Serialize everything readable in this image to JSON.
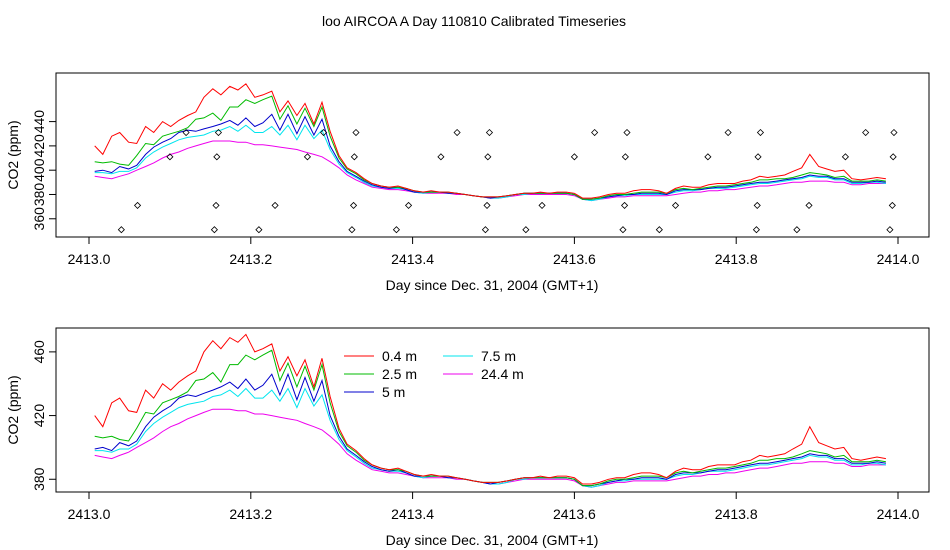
{
  "figure": {
    "title": "loo AIRCOA A  Day 110810  Calibrated Timeseries"
  },
  "colors": {
    "0.4 m": "#ff0000",
    "2.5 m": "#00bb00",
    "5 m": "#0000cc",
    "7.5 m": "#00e5ee",
    "24.4 m": "#ee00ee",
    "frame": "#000000"
  },
  "chart_data": [
    {
      "type": "line",
      "panel": "top",
      "xlabel": "Day since Dec. 31, 2004 (GMT+1)",
      "ylabel": "CO2 (ppm)",
      "xlim": [
        2413.0,
        2414.0
      ],
      "ylim": [
        345,
        480
      ],
      "xticks": [
        "2413.0",
        "2413.2",
        "2413.4",
        "2413.6",
        "2413.8",
        "2414.0"
      ],
      "yticks": [
        "360",
        "380",
        "400",
        "420",
        "440"
      ],
      "legend": "none",
      "x": [
        2413.007,
        2413.017,
        2413.028,
        2413.038,
        2413.049,
        2413.059,
        2413.07,
        2413.08,
        2413.091,
        2413.101,
        2413.111,
        2413.122,
        2413.132,
        2413.142,
        2413.153,
        2413.163,
        2413.174,
        2413.184,
        2413.194,
        2413.205,
        2413.215,
        2413.226,
        2413.236,
        2413.246,
        2413.257,
        2413.267,
        2413.278,
        2413.288,
        2413.298,
        2413.309,
        2413.319,
        2413.33,
        2413.34,
        2413.35,
        2413.361,
        2413.371,
        2413.382,
        2413.392,
        2413.402,
        2413.413,
        2413.423,
        2413.434,
        2413.444,
        2413.454,
        2413.465,
        2413.475,
        2413.486,
        2413.496,
        2413.506,
        2413.517,
        2413.527,
        2413.538,
        2413.548,
        2413.558,
        2413.569,
        2413.579,
        2413.59,
        2413.6,
        2413.61,
        2413.621,
        2413.631,
        2413.642,
        2413.652,
        2413.662,
        2413.673,
        2413.683,
        2413.694,
        2413.704,
        2413.714,
        2413.725,
        2413.735,
        2413.746,
        2413.756,
        2413.766,
        2413.777,
        2413.787,
        2413.798,
        2413.808,
        2413.818,
        2413.829,
        2413.839,
        2413.85,
        2413.86,
        2413.87,
        2413.881,
        2413.891,
        2413.902,
        2413.912,
        2413.922,
        2413.933,
        2413.943,
        2413.954,
        2413.964,
        2413.974,
        2413.985
      ],
      "series": [
        {
          "name": "0.4 m",
          "values": [
            420,
            413,
            428,
            431,
            423,
            422,
            436,
            431,
            440,
            436,
            441,
            445,
            448,
            460,
            467,
            462,
            469,
            466,
            471,
            460,
            462,
            465,
            448,
            457,
            445,
            455,
            438,
            456,
            432,
            412,
            402,
            398,
            393,
            389,
            387,
            386,
            387,
            385,
            383,
            382,
            383,
            382,
            382,
            381,
            380,
            379,
            378,
            378,
            378,
            379,
            380,
            381,
            381,
            382,
            381,
            382,
            382,
            381,
            377,
            377,
            378,
            380,
            381,
            381,
            383,
            384,
            384,
            383,
            381,
            385,
            387,
            386,
            386,
            388,
            389,
            389,
            389,
            391,
            392,
            395,
            394,
            395,
            396,
            399,
            402,
            413,
            403,
            401,
            399,
            400,
            393,
            392,
            393,
            394,
            393
          ]
        },
        {
          "name": "2.5 m",
          "values": [
            407,
            406,
            407,
            405,
            404,
            412,
            422,
            421,
            428,
            430,
            432,
            435,
            442,
            443,
            447,
            441,
            452,
            452,
            458,
            455,
            458,
            461,
            442,
            453,
            438,
            451,
            436,
            452,
            428,
            410,
            401,
            397,
            392,
            389,
            387,
            386,
            386,
            385,
            383,
            382,
            382,
            382,
            382,
            381,
            380,
            379,
            378,
            378,
            378,
            379,
            380,
            381,
            381,
            381,
            381,
            381,
            381,
            380,
            376,
            376,
            377,
            379,
            380,
            380,
            381,
            382,
            382,
            382,
            381,
            384,
            385,
            384,
            385,
            386,
            387,
            387,
            388,
            389,
            390,
            392,
            392,
            393,
            393,
            394,
            396,
            398,
            397,
            396,
            394,
            395,
            391,
            391,
            391,
            392,
            391
          ]
        },
        {
          "name": "5 m",
          "values": [
            399,
            400,
            398,
            403,
            401,
            404,
            413,
            419,
            423,
            426,
            431,
            433,
            432,
            434,
            436,
            438,
            441,
            437,
            443,
            436,
            439,
            446,
            433,
            446,
            430,
            444,
            429,
            442,
            420,
            407,
            399,
            395,
            391,
            388,
            386,
            385,
            386,
            384,
            382,
            382,
            382,
            382,
            381,
            381,
            380,
            379,
            378,
            377,
            378,
            379,
            380,
            381,
            381,
            381,
            381,
            381,
            381,
            380,
            376,
            376,
            377,
            378,
            379,
            380,
            380,
            381,
            381,
            381,
            380,
            383,
            384,
            384,
            384,
            385,
            386,
            386,
            387,
            388,
            389,
            390,
            390,
            391,
            392,
            393,
            394,
            396,
            395,
            395,
            393,
            393,
            390,
            390,
            390,
            391,
            390
          ]
        },
        {
          "name": "7.5 m",
          "values": [
            398,
            398,
            397,
            399,
            399,
            402,
            410,
            415,
            419,
            422,
            425,
            427,
            428,
            429,
            432,
            433,
            436,
            432,
            437,
            431,
            431,
            436,
            429,
            437,
            425,
            437,
            426,
            433,
            417,
            405,
            398,
            394,
            390,
            387,
            386,
            385,
            385,
            384,
            382,
            381,
            382,
            382,
            381,
            381,
            380,
            379,
            378,
            377,
            377,
            378,
            380,
            380,
            381,
            381,
            381,
            381,
            381,
            380,
            376,
            375,
            376,
            378,
            379,
            379,
            380,
            380,
            380,
            380,
            380,
            382,
            383,
            383,
            384,
            385,
            385,
            385,
            386,
            387,
            388,
            389,
            389,
            390,
            391,
            392,
            393,
            395,
            394,
            394,
            392,
            392,
            389,
            389,
            390,
            390,
            389
          ]
        },
        {
          "name": "24.4 m",
          "values": [
            395,
            394,
            393,
            395,
            397,
            400,
            403,
            406,
            410,
            413,
            415,
            418,
            420,
            422,
            424,
            424,
            424,
            423,
            423,
            421,
            421,
            420,
            419,
            418,
            417,
            415,
            413,
            411,
            407,
            402,
            396,
            392,
            389,
            386,
            385,
            384,
            384,
            383,
            382,
            381,
            381,
            381,
            381,
            380,
            380,
            379,
            378,
            377,
            377,
            378,
            379,
            380,
            380,
            380,
            380,
            380,
            380,
            379,
            376,
            375,
            376,
            377,
            378,
            378,
            379,
            379,
            379,
            379,
            379,
            380,
            381,
            382,
            382,
            383,
            383,
            384,
            384,
            385,
            386,
            387,
            387,
            388,
            389,
            390,
            390,
            391,
            391,
            391,
            390,
            390,
            388,
            388,
            389,
            389,
            389
          ]
        }
      ],
      "markers": [
        {
          "x": 2413.04,
          "y": 351
        },
        {
          "x": 2413.06,
          "y": 371
        },
        {
          "x": 2413.1,
          "y": 411
        },
        {
          "x": 2413.12,
          "y": 431
        },
        {
          "x": 2413.155,
          "y": 351
        },
        {
          "x": 2413.157,
          "y": 371
        },
        {
          "x": 2413.158,
          "y": 411
        },
        {
          "x": 2413.16,
          "y": 431
        },
        {
          "x": 2413.21,
          "y": 351
        },
        {
          "x": 2413.23,
          "y": 371
        },
        {
          "x": 2413.27,
          "y": 411
        },
        {
          "x": 2413.29,
          "y": 431
        },
        {
          "x": 2413.325,
          "y": 351
        },
        {
          "x": 2413.327,
          "y": 371
        },
        {
          "x": 2413.328,
          "y": 411
        },
        {
          "x": 2413.33,
          "y": 431
        },
        {
          "x": 2413.38,
          "y": 351
        },
        {
          "x": 2413.395,
          "y": 371
        },
        {
          "x": 2413.435,
          "y": 411
        },
        {
          "x": 2413.455,
          "y": 431
        },
        {
          "x": 2413.49,
          "y": 351
        },
        {
          "x": 2413.492,
          "y": 371
        },
        {
          "x": 2413.493,
          "y": 411
        },
        {
          "x": 2413.495,
          "y": 431
        },
        {
          "x": 2413.54,
          "y": 351
        },
        {
          "x": 2413.56,
          "y": 371
        },
        {
          "x": 2413.6,
          "y": 411
        },
        {
          "x": 2413.625,
          "y": 431
        },
        {
          "x": 2413.66,
          "y": 351
        },
        {
          "x": 2413.662,
          "y": 371
        },
        {
          "x": 2413.663,
          "y": 411
        },
        {
          "x": 2413.665,
          "y": 431
        },
        {
          "x": 2413.705,
          "y": 351
        },
        {
          "x": 2413.725,
          "y": 371
        },
        {
          "x": 2413.765,
          "y": 411
        },
        {
          "x": 2413.79,
          "y": 431
        },
        {
          "x": 2413.825,
          "y": 351
        },
        {
          "x": 2413.826,
          "y": 371
        },
        {
          "x": 2413.827,
          "y": 411
        },
        {
          "x": 2413.83,
          "y": 431
        },
        {
          "x": 2413.875,
          "y": 351
        },
        {
          "x": 2413.89,
          "y": 371
        },
        {
          "x": 2413.935,
          "y": 411
        },
        {
          "x": 2413.96,
          "y": 431
        },
        {
          "x": 2413.99,
          "y": 351
        },
        {
          "x": 2413.993,
          "y": 371
        },
        {
          "x": 2413.994,
          "y": 411
        },
        {
          "x": 2413.995,
          "y": 431
        }
      ]
    },
    {
      "type": "line",
      "panel": "bottom",
      "xlabel": "Day since Dec. 31, 2004 (GMT+1)",
      "ylabel": "CO2 (ppm)",
      "xlim": [
        2413.0,
        2414.0
      ],
      "ylim": [
        372,
        475
      ],
      "xticks": [
        "2413.0",
        "2413.2",
        "2413.4",
        "2413.6",
        "2413.8",
        "2414.0"
      ],
      "yticks": [
        "380",
        "420",
        "460"
      ],
      "legend": "top-center",
      "legend_entries": [
        "0.4 m",
        "2.5 m",
        "5 m",
        "7.5 m",
        "24.4 m"
      ],
      "same_series_as": "top"
    }
  ]
}
